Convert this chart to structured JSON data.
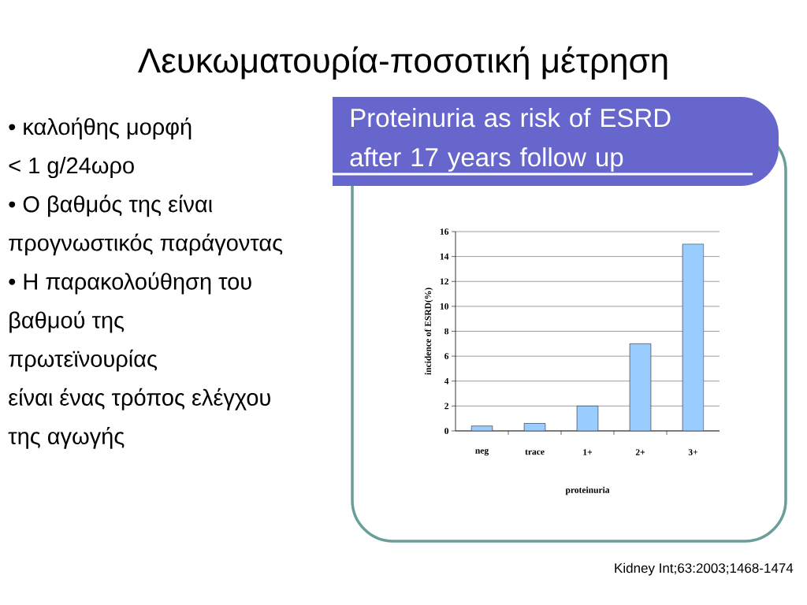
{
  "chart_data": {
    "type": "bar",
    "title": "Λευκωματουρία-ποσοτική μέτρηση",
    "subtitle": "Proteinuria as risk of ESRD after 17 years follow up",
    "categories": [
      "neg",
      "trace",
      "1+",
      "2+",
      "3+"
    ],
    "values": [
      0.4,
      0.6,
      2,
      7,
      15
    ],
    "color": "#99ccff",
    "xlabel": "proteinuria",
    "ylabel": "incidence of ESRD(%)",
    "ylim": [
      0,
      16
    ],
    "yticks": [
      0,
      2,
      4,
      6,
      8,
      10,
      12,
      14,
      16
    ],
    "grid": "y",
    "annotations": [
      "• καλοήθης μορφή",
      "< 1 g/24ωρο",
      "• Ο βαθμός της είναι",
      "προγνωστικός παράγοντας",
      "• Η παρακολούθηση του",
      "βαθμού της",
      "πρωτεϊνουρίας",
      "είναι ένας τρόπος ελέγχου",
      "της αγωγής",
      "Kidney Int;63:2003;1468-1474"
    ]
  }
}
